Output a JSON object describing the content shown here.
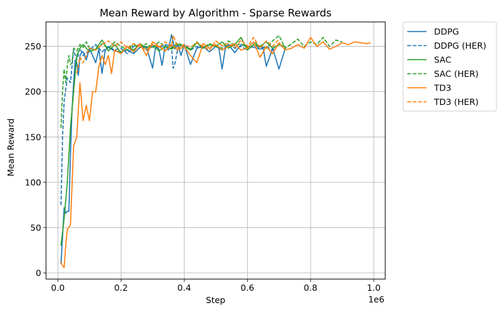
{
  "chart_data": {
    "type": "line",
    "title": "Mean Reward by Algorithm - Sparse Rewards",
    "xlabel": "Step",
    "ylabel": "Mean Reward",
    "x_offset_label": "1e6",
    "xlim": [
      -0.0375,
      1.0365
    ],
    "ylim": [
      -6.8,
      277
    ],
    "x_ticks": [
      0.0,
      0.2,
      0.4,
      0.6,
      0.8,
      1.0
    ],
    "x_tick_labels": [
      "0.0",
      "0.2",
      "0.4",
      "0.6",
      "0.8",
      "1.0"
    ],
    "y_ticks": [
      0,
      50,
      100,
      150,
      200,
      250
    ],
    "y_tick_labels": [
      "0",
      "50",
      "100",
      "150",
      "200",
      "250"
    ],
    "grid": true,
    "legend_placement": "outside top-right",
    "series": [
      {
        "name": "DDPG",
        "color": "#1f77b4",
        "dash": "solid",
        "x": [
          0.01,
          0.015,
          0.02,
          0.025,
          0.03,
          0.035,
          0.04,
          0.045,
          0.05,
          0.055,
          0.06,
          0.065,
          0.07,
          0.075,
          0.08,
          0.09,
          0.1,
          0.11,
          0.12,
          0.13,
          0.14,
          0.15,
          0.16,
          0.18,
          0.2,
          0.22,
          0.24,
          0.26,
          0.28,
          0.3,
          0.31,
          0.32,
          0.33,
          0.34,
          0.35,
          0.36,
          0.37,
          0.38,
          0.39,
          0.4,
          0.42,
          0.44,
          0.46,
          0.48,
          0.5,
          0.51,
          0.52,
          0.53,
          0.54,
          0.56,
          0.58,
          0.6,
          0.62,
          0.64,
          0.65,
          0.66,
          0.68,
          0.7,
          0.72
        ],
        "y": [
          10,
          40,
          72,
          66,
          68,
          68,
          130,
          180,
          210,
          235,
          232,
          218,
          240,
          243,
          244,
          235,
          248,
          240,
          232,
          247,
          220,
          246,
          249,
          245,
          244,
          246,
          242,
          249,
          250,
          226,
          251,
          247,
          229,
          251,
          246,
          263,
          247,
          252,
          240,
          252,
          230,
          248,
          250,
          244,
          250,
          248,
          225,
          247,
          252,
          243,
          252,
          250,
          249,
          247,
          248,
          228,
          248,
          225,
          248
        ]
      },
      {
        "name": "DDPG (HER)",
        "color": "#1f77b4",
        "dash": "dashed",
        "x": [
          0.01,
          0.015,
          0.02,
          0.03,
          0.04,
          0.05,
          0.06,
          0.07,
          0.08,
          0.1,
          0.12,
          0.14,
          0.16,
          0.18,
          0.2,
          0.22,
          0.24,
          0.26,
          0.28,
          0.3,
          0.32,
          0.34,
          0.36,
          0.365,
          0.37,
          0.38,
          0.4,
          0.42,
          0.44,
          0.46,
          0.48,
          0.5,
          0.52,
          0.54,
          0.56,
          0.58,
          0.6,
          0.62,
          0.64,
          0.66,
          0.68,
          0.7
        ],
        "y": [
          75,
          150,
          190,
          215,
          210,
          246,
          235,
          248,
          240,
          246,
          252,
          244,
          250,
          246,
          248,
          242,
          250,
          252,
          246,
          250,
          248,
          252,
          250,
          226,
          230,
          248,
          252,
          246,
          250,
          248,
          252,
          250,
          246,
          252,
          248,
          250,
          246,
          252,
          248,
          250,
          246,
          252
        ]
      },
      {
        "name": "SAC",
        "color": "#2ca02c",
        "dash": "solid",
        "x": [
          0.01,
          0.02,
          0.03,
          0.04,
          0.05,
          0.06,
          0.07,
          0.08,
          0.1,
          0.12,
          0.14,
          0.16,
          0.18,
          0.2,
          0.22,
          0.24,
          0.26,
          0.28,
          0.3,
          0.32,
          0.34,
          0.36,
          0.38,
          0.4,
          0.42,
          0.44,
          0.46,
          0.48,
          0.5,
          0.52,
          0.54,
          0.56,
          0.58,
          0.6,
          0.62,
          0.64,
          0.66,
          0.68,
          0.7,
          0.72
        ],
        "y": [
          30,
          60,
          100,
          160,
          200,
          240,
          248,
          252,
          244,
          247,
          257,
          245,
          252,
          243,
          250,
          246,
          253,
          248,
          252,
          245,
          250,
          247,
          252,
          250,
          246,
          254,
          248,
          252,
          250,
          255,
          248,
          252,
          260,
          246,
          252,
          250,
          255,
          248,
          252,
          250
        ]
      },
      {
        "name": "SAC (HER)",
        "color": "#2ca02c",
        "dash": "dashed",
        "x": [
          0.01,
          0.015,
          0.02,
          0.025,
          0.03,
          0.035,
          0.04,
          0.045,
          0.05,
          0.06,
          0.07,
          0.08,
          0.09,
          0.1,
          0.12,
          0.14,
          0.16,
          0.18,
          0.2,
          0.22,
          0.24,
          0.26,
          0.28,
          0.3,
          0.32,
          0.34,
          0.36,
          0.38,
          0.4,
          0.42,
          0.44,
          0.46,
          0.48,
          0.5,
          0.52,
          0.54,
          0.56,
          0.58,
          0.6,
          0.62,
          0.64,
          0.66,
          0.68,
          0.7,
          0.72,
          0.74,
          0.76,
          0.78,
          0.8,
          0.82,
          0.84,
          0.86,
          0.88,
          0.9
        ],
        "y": [
          160,
          200,
          225,
          210,
          228,
          240,
          230,
          232,
          248,
          245,
          252,
          249,
          255,
          248,
          246,
          253,
          248,
          255,
          250,
          246,
          252,
          249,
          253,
          248,
          255,
          250,
          248,
          254,
          250,
          247,
          255,
          249,
          253,
          250,
          248,
          256,
          251,
          253,
          249,
          255,
          250,
          248,
          256,
          262,
          248,
          253,
          258,
          250,
          255,
          252,
          260,
          250,
          257,
          255
        ]
      },
      {
        "name": "TD3",
        "color": "#ff7f0e",
        "dash": "solid",
        "x": [
          0.01,
          0.015,
          0.02,
          0.025,
          0.03,
          0.04,
          0.05,
          0.06,
          0.07,
          0.08,
          0.09,
          0.1,
          0.11,
          0.12,
          0.13,
          0.14,
          0.15,
          0.16,
          0.17,
          0.18,
          0.2,
          0.22,
          0.24,
          0.26,
          0.28,
          0.3,
          0.32,
          0.34,
          0.36,
          0.38,
          0.4,
          0.42,
          0.44,
          0.46,
          0.48,
          0.5,
          0.52,
          0.54,
          0.56,
          0.58,
          0.6,
          0.62,
          0.64,
          0.66,
          0.68,
          0.7,
          0.72,
          0.74,
          0.76,
          0.78,
          0.8,
          0.82,
          0.84,
          0.86,
          0.88,
          0.9,
          0.92,
          0.94,
          0.96,
          0.98,
          0.99
        ],
        "y": [
          12,
          8,
          6,
          30,
          48,
          53,
          140,
          150,
          210,
          168,
          185,
          168,
          200,
          200,
          228,
          240,
          230,
          240,
          220,
          246,
          242,
          250,
          244,
          253,
          240,
          255,
          250,
          245,
          252,
          246,
          250,
          240,
          232,
          253,
          248,
          252,
          246,
          250,
          253,
          246,
          248,
          255,
          238,
          250,
          242,
          254,
          246,
          248,
          252,
          248,
          260,
          250,
          255,
          247,
          250,
          254,
          252,
          255,
          254,
          253,
          254
        ]
      },
      {
        "name": "TD3 (HER)",
        "color": "#ff7f0e",
        "dash": "dashed",
        "x": [
          0.06,
          0.07,
          0.08,
          0.1,
          0.12,
          0.14,
          0.16,
          0.18,
          0.2,
          0.22,
          0.24,
          0.26,
          0.28,
          0.3,
          0.32,
          0.34,
          0.36,
          0.365,
          0.37,
          0.38,
          0.4,
          0.42,
          0.44,
          0.46,
          0.48,
          0.5,
          0.52,
          0.54,
          0.56,
          0.58,
          0.6,
          0.62,
          0.64,
          0.66,
          0.68,
          0.7
        ],
        "y": [
          220,
          238,
          232,
          248,
          246,
          252,
          256,
          250,
          255,
          248,
          253,
          250,
          246,
          252,
          249,
          255,
          250,
          262,
          258,
          248,
          252,
          249,
          254,
          250,
          246,
          256,
          251,
          253,
          249,
          257,
          250,
          260,
          248,
          256,
          250,
          258
        ]
      }
    ]
  }
}
